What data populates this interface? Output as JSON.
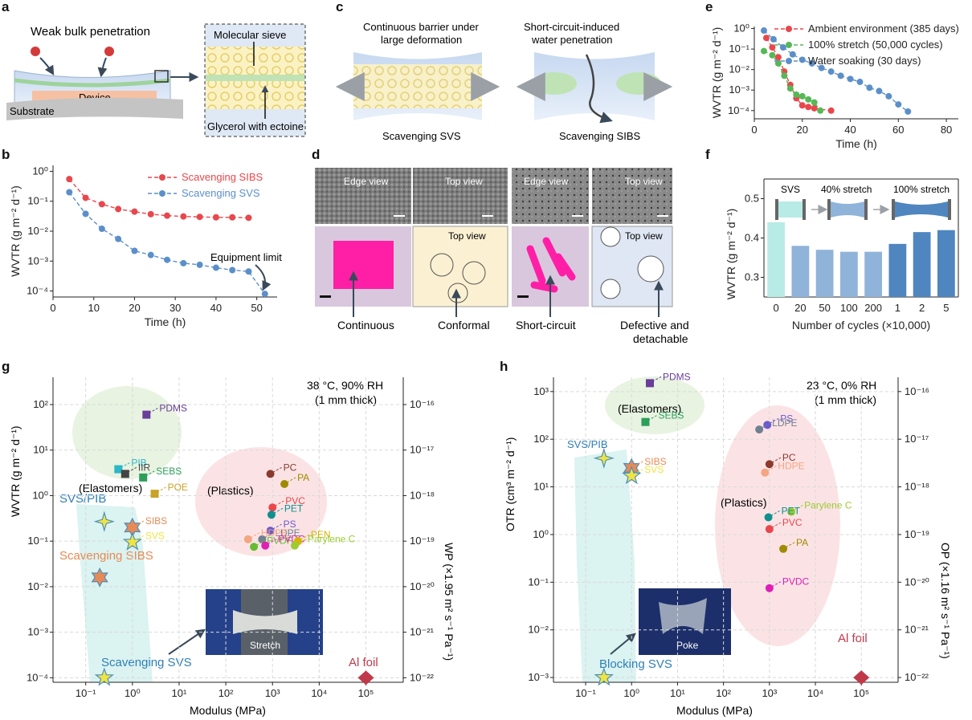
{
  "panels": {
    "a": {
      "letter": "a",
      "title": "Weak bulk penetration",
      "device": "Device",
      "substrate": "Substrate",
      "sieve": "Molecular sieve",
      "glycerol": "Glycerol with ectoine"
    },
    "b": {
      "letter": "b",
      "equipment_limit": "Equipment limit"
    },
    "c": {
      "letter": "c",
      "left_title": "Continuous barrier under large deformation",
      "right_title": "Short-circuit-induced water penetration",
      "left_caption": "Scavenging SVS",
      "right_caption": "Scavenging SIBS"
    },
    "d": {
      "letter": "d",
      "edge_view_1": "Edge view",
      "top_view_1": "Top view",
      "edge_view_2": "Edge view",
      "top_view_2": "Top view",
      "top_view_3": "Top view",
      "top_view_4": "Top view",
      "label_continuous": "Continuous",
      "label_conformal": "Conformal",
      "label_short": "Short-circuit",
      "label_defective_1": "Defective and",
      "label_defective_2": "detachable"
    },
    "e": {
      "letter": "e"
    },
    "f": {
      "letter": "f",
      "svs": "SVS",
      "s40": "40% stretch",
      "s100": "100% stretch"
    },
    "g": {
      "letter": "g",
      "condition_1": "38 °C, 90% RH",
      "condition_2": "(1 mm thick)",
      "group_elastomers": "(Elastomers)",
      "group_plastics": "(Plastics)",
      "scavenging_sibs": "Scavenging SIBS",
      "scavenging_svs": "Scavenging SVS",
      "al_foil": "Al foil",
      "photo_label": "Stretch",
      "ylabel": "WVTR (g m⁻² d⁻¹)",
      "ylabel_right": "WP (×1.95 m² s⁻¹ Pa⁻¹)",
      "xlabel": "Modulus (MPa)"
    },
    "h": {
      "letter": "h",
      "condition_1": "23 °C, 0% RH",
      "condition_2": "(1 mm thick)",
      "group_elastomers": "(Elastomers)",
      "group_plastics": "(Plastics)",
      "blocking_svs": "Blocking SVS",
      "al_foil": "Al foil",
      "photo_label": "Poke",
      "ylabel": "OTR (cm³ m⁻² d⁻¹)",
      "ylabel_right": "OP (×1.16 m² s⁻¹ Pa⁻¹)",
      "xlabel": "Modulus (MPa)"
    }
  },
  "colors": {
    "red": "#e8474c",
    "blue": "#5b8fc9",
    "green": "#56b857",
    "bar_light": "#b8ebe5",
    "bar_mid": "#8fb3d9",
    "bar_dark": "#4f86bf"
  },
  "chart_data": [
    {
      "id": "b",
      "type": "line",
      "xlabel": "Time (h)",
      "ylabel": "WVTR (g m⁻² d⁻¹)",
      "xlim": [
        0,
        55
      ],
      "ylim_log10": [
        -4.2,
        0.2
      ],
      "xticks": [
        0,
        10,
        20,
        30,
        40,
        50
      ],
      "yticks_log10": [
        -4,
        -3,
        -2,
        -1,
        0
      ],
      "ytick_labels": [
        "10⁻⁴",
        "10⁻³",
        "10⁻²",
        "10⁻¹",
        "10⁰"
      ],
      "series": [
        {
          "name": "Scavenging SIBS",
          "color": "#e8474c",
          "x": [
            4,
            8,
            12,
            16,
            20,
            24,
            28,
            32,
            36,
            40,
            44,
            48
          ],
          "y": [
            0.55,
            0.13,
            0.08,
            0.055,
            0.045,
            0.037,
            0.033,
            0.031,
            0.03,
            0.029,
            0.029,
            0.028
          ]
        },
        {
          "name": "Scavenging SVS",
          "color": "#5b8fc9",
          "x": [
            4,
            8,
            12,
            16,
            20,
            24,
            28,
            32,
            36,
            40,
            44,
            48,
            52
          ],
          "y": [
            0.2,
            0.038,
            0.012,
            0.0055,
            0.0022,
            0.0016,
            0.0011,
            0.00085,
            0.00075,
            0.0006,
            0.0005,
            0.00045,
            8e-05
          ]
        }
      ]
    },
    {
      "id": "e",
      "type": "line",
      "xlabel": "Time (h)",
      "ylabel": "WVTR (g m⁻² d⁻¹)",
      "xlim": [
        0,
        85
      ],
      "ylim_log10": [
        -4.4,
        0.1
      ],
      "xticks": [
        0,
        20,
        40,
        60,
        80
      ],
      "yticks_log10": [
        -4,
        -3,
        -2,
        -1,
        0
      ],
      "ytick_labels": [
        "10⁻⁴",
        "10⁻³",
        "10⁻²",
        "10⁻¹",
        "10⁰"
      ],
      "series": [
        {
          "name": "Ambient environment (385 days)",
          "color": "#e8474c",
          "x": [
            5,
            7.5,
            10,
            12.5,
            15,
            17.5,
            20,
            22.5,
            25,
            32
          ],
          "y": [
            0.35,
            0.12,
            0.04,
            0.008,
            0.0018,
            0.0004,
            0.00018,
            0.00015,
            0.00013,
            0.0001
          ]
        },
        {
          "name": "100% stretch (50,000 cycles)",
          "color": "#56b857",
          "x": [
            4,
            7.5,
            10,
            12.5,
            15,
            17.5,
            20,
            22.5,
            25,
            27.5
          ],
          "y": [
            0.08,
            0.05,
            0.02,
            0.005,
            0.0012,
            0.0006,
            0.0005,
            0.00035,
            0.00025,
            0.0001
          ]
        },
        {
          "name": "Water soaking (30 days)",
          "color": "#5b8fc9",
          "x": [
            4,
            8,
            12,
            16,
            20,
            24,
            28,
            32,
            36,
            40,
            44,
            48,
            52,
            56,
            60,
            64
          ],
          "y": [
            0.8,
            0.3,
            0.12,
            0.055,
            0.03,
            0.02,
            0.012,
            0.008,
            0.005,
            0.0035,
            0.0025,
            0.0013,
            0.0009,
            0.0005,
            0.0002,
            9e-05
          ]
        }
      ]
    },
    {
      "id": "f",
      "type": "bar",
      "xlabel": "Number of cycles (×10,000)",
      "ylabel": "WVTR (g m⁻² d⁻¹)",
      "ylim": [
        0.25,
        0.55
      ],
      "yticks": [
        0.3,
        0.4,
        0.5
      ],
      "categories": [
        "0",
        "20",
        "50",
        "100",
        "200",
        "1",
        "2",
        "5"
      ],
      "values": [
        0.44,
        0.38,
        0.37,
        0.365,
        0.365,
        0.385,
        0.415,
        0.42
      ]
    },
    {
      "id": "g",
      "type": "scatter",
      "xlabel": "Modulus (MPa)",
      "ylabel": "WVTR (g m⁻² d⁻¹)",
      "xlim_log10": [
        -1.7,
        5.8
      ],
      "ylim_log10": [
        -4.1,
        2.6
      ],
      "xticks_log10": [
        -1,
        0,
        1,
        2,
        3,
        4,
        5
      ],
      "xtick_labels": [
        "10⁻¹",
        "10⁰",
        "10¹",
        "10²",
        "10³",
        "10⁴",
        "10⁵"
      ],
      "yticks_log10": [
        -4,
        -3,
        -2,
        -1,
        0,
        1,
        2
      ],
      "ytick_labels": [
        "10⁻⁴",
        "10⁻³",
        "10⁻²",
        "10⁻¹",
        "10⁰",
        "10¹",
        "10²"
      ],
      "right_tick_labels": [
        "10⁻²²",
        "10⁻²¹",
        "10⁻²⁰",
        "10⁻¹⁹",
        "10⁻¹⁸",
        "10⁻¹⁷",
        "10⁻¹⁶"
      ],
      "points": [
        {
          "label": "PDMS",
          "x": 2.0,
          "y": 60,
          "color": "#6a3d9a",
          "marker": "square"
        },
        {
          "label": "PIB",
          "x": 0.5,
          "y": 3.8,
          "color": "#2ab7c8",
          "marker": "square"
        },
        {
          "label": "IIR",
          "x": 0.7,
          "y": 3.0,
          "color": "#444444",
          "marker": "square"
        },
        {
          "label": "POE",
          "x": 3.0,
          "y": 1.1,
          "color": "#c9a227",
          "marker": "square"
        },
        {
          "label": "SEBS",
          "x": 1.7,
          "y": 2.5,
          "color": "#2e9e5b",
          "marker": "square"
        },
        {
          "label": "SVS/PIB",
          "x": 0.25,
          "y": 0.27,
          "color": "#f0e442",
          "marker": "star4"
        },
        {
          "label": "SIBS",
          "x": 1.0,
          "y": 0.2,
          "color": "#e88a55",
          "marker": "star6"
        },
        {
          "label": "SVS",
          "x": 1.0,
          "y": 0.095,
          "color": "#f0e442",
          "marker": "star5"
        },
        {
          "label": "Scavenging SIBS",
          "x": 0.2,
          "y": 0.016,
          "color": "#e88a55",
          "marker": "star6"
        },
        {
          "label": "Scavenging SVS",
          "x": 0.25,
          "y": 0.0001,
          "color": "#f0e442",
          "marker": "star5"
        },
        {
          "label": "PC",
          "x": 900,
          "y": 3.0,
          "color": "#8b3a2f",
          "marker": "circle"
        },
        {
          "label": "PA",
          "x": 1800,
          "y": 1.8,
          "color": "#a08a00",
          "marker": "circle"
        },
        {
          "label": "PVC",
          "x": 1000,
          "y": 0.55,
          "color": "#e8474c",
          "marker": "circle"
        },
        {
          "label": "PET",
          "x": 950,
          "y": 0.38,
          "color": "#0f8f8f",
          "marker": "circle"
        },
        {
          "label": "PS",
          "x": 900,
          "y": 0.17,
          "color": "#6a5acd",
          "marker": "circle"
        },
        {
          "label": "LDPE",
          "x": 600,
          "y": 0.11,
          "color": "#708090",
          "marker": "circle"
        },
        {
          "label": "HDPE",
          "x": 300,
          "y": 0.11,
          "color": "#f4a582",
          "marker": "circle"
        },
        {
          "label": "PVDF",
          "x": 400,
          "y": 0.075,
          "color": "#66bb33",
          "marker": "circle"
        },
        {
          "label": "PVDC",
          "x": 700,
          "y": 0.08,
          "color": "#e01fb4",
          "marker": "circle"
        },
        {
          "label": "PEN",
          "x": 3500,
          "y": 0.1,
          "color": "#d4b400",
          "marker": "circle"
        },
        {
          "label": "Parylene C",
          "x": 3000,
          "y": 0.08,
          "color": "#9acd32",
          "marker": "circle"
        },
        {
          "label": "Al foil",
          "x": 100000,
          "y": 0.0001,
          "color": "#c0394b",
          "marker": "diamond"
        }
      ]
    },
    {
      "id": "h",
      "type": "scatter",
      "xlabel": "Modulus (MPa)",
      "ylabel": "OTR (cm³ m⁻² d⁻¹)",
      "xlim_log10": [
        -1.7,
        5.8
      ],
      "ylim_log10": [
        -3.1,
        3.3
      ],
      "xticks_log10": [
        -1,
        0,
        1,
        2,
        3,
        4,
        5
      ],
      "xtick_labels": [
        "10⁻¹",
        "10⁰",
        "10¹",
        "10²",
        "10³",
        "10⁴",
        "10⁵"
      ],
      "yticks_log10": [
        -3,
        -2,
        -1,
        0,
        1,
        2,
        3
      ],
      "ytick_labels": [
        "10⁻³",
        "10⁻²",
        "10⁻¹",
        "10⁰",
        "10¹",
        "10²",
        "10³"
      ],
      "right_tick_labels": [
        "10⁻²²",
        "10⁻²¹",
        "10⁻²⁰",
        "10⁻¹⁹",
        "10⁻¹⁸",
        "10⁻¹⁷",
        "10⁻¹⁶"
      ],
      "points": [
        {
          "label": "PDMS",
          "x": 2.5,
          "y": 1500,
          "color": "#6a3d9a",
          "marker": "square"
        },
        {
          "label": "SEBS",
          "x": 2.0,
          "y": 230,
          "color": "#2e9e5b",
          "marker": "square"
        },
        {
          "label": "SVS/PIB",
          "x": 0.25,
          "y": 40,
          "color": "#f0e442",
          "marker": "star4"
        },
        {
          "label": "SIBS",
          "x": 1.0,
          "y": 25,
          "color": "#e88a55",
          "marker": "star6"
        },
        {
          "label": "SVS",
          "x": 1.0,
          "y": 17,
          "color": "#f0e442",
          "marker": "star5"
        },
        {
          "label": "Blocking SVS",
          "x": 0.25,
          "y": 0.001,
          "color": "#f0e442",
          "marker": "star5"
        },
        {
          "label": "PS",
          "x": 900,
          "y": 200,
          "color": "#6a5acd",
          "marker": "circle"
        },
        {
          "label": "LDPE",
          "x": 600,
          "y": 160,
          "color": "#708090",
          "marker": "circle"
        },
        {
          "label": "HDPE",
          "x": 800,
          "y": 20,
          "color": "#f4a582",
          "marker": "circle"
        },
        {
          "label": "PC",
          "x": 1000,
          "y": 30,
          "color": "#8b3a2f",
          "marker": "circle"
        },
        {
          "label": "Parylene C",
          "x": 3000,
          "y": 3.0,
          "color": "#9acd32",
          "marker": "circle"
        },
        {
          "label": "PET",
          "x": 950,
          "y": 2.3,
          "color": "#0f8f8f",
          "marker": "circle"
        },
        {
          "label": "PVC",
          "x": 1000,
          "y": 1.3,
          "color": "#e8474c",
          "marker": "circle"
        },
        {
          "label": "PA",
          "x": 2000,
          "y": 0.5,
          "color": "#a08a00",
          "marker": "circle"
        },
        {
          "label": "PVDC",
          "x": 1000,
          "y": 0.075,
          "color": "#e01fb4",
          "marker": "circle"
        },
        {
          "label": "Al foil",
          "x": 100000,
          "y": 0.001,
          "color": "#c0394b",
          "marker": "diamond"
        }
      ]
    }
  ]
}
